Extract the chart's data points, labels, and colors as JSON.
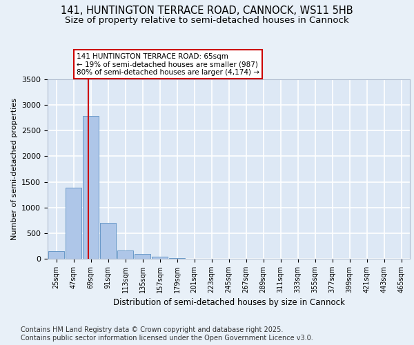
{
  "title1": "141, HUNTINGTON TERRACE ROAD, CANNOCK, WS11 5HB",
  "title2": "Size of property relative to semi-detached houses in Cannock",
  "xlabel": "Distribution of semi-detached houses by size in Cannock",
  "ylabel": "Number of semi-detached properties",
  "categories": [
    "25sqm",
    "47sqm",
    "69sqm",
    "91sqm",
    "113sqm",
    "135sqm",
    "157sqm",
    "179sqm",
    "201sqm",
    "223sqm",
    "245sqm",
    "267sqm",
    "289sqm",
    "311sqm",
    "333sqm",
    "355sqm",
    "377sqm",
    "399sqm",
    "421sqm",
    "443sqm",
    "465sqm"
  ],
  "values": [
    150,
    1390,
    2790,
    700,
    165,
    95,
    40,
    10,
    0,
    0,
    0,
    0,
    0,
    0,
    0,
    0,
    0,
    0,
    0,
    0,
    0
  ],
  "bar_color": "#aec6e8",
  "bar_edge_color": "#5a8fc2",
  "vline_x": 1.85,
  "vline_color": "#cc0000",
  "annotation_text": "141 HUNTINGTON TERRACE ROAD: 65sqm\n← 19% of semi-detached houses are smaller (987)\n80% of semi-detached houses are larger (4,174) →",
  "annotation_box_color": "#cc0000",
  "ylim": [
    0,
    3500
  ],
  "yticks": [
    0,
    500,
    1000,
    1500,
    2000,
    2500,
    3000,
    3500
  ],
  "footnote": "Contains HM Land Registry data © Crown copyright and database right 2025.\nContains public sector information licensed under the Open Government Licence v3.0.",
  "bg_color": "#e8f0f8",
  "plot_bg_color": "#dde8f5",
  "grid_color": "#ffffff",
  "title_fontsize": 10.5,
  "subtitle_fontsize": 9.5,
  "axis_fontsize": 8,
  "tick_fontsize": 7,
  "footnote_fontsize": 7
}
